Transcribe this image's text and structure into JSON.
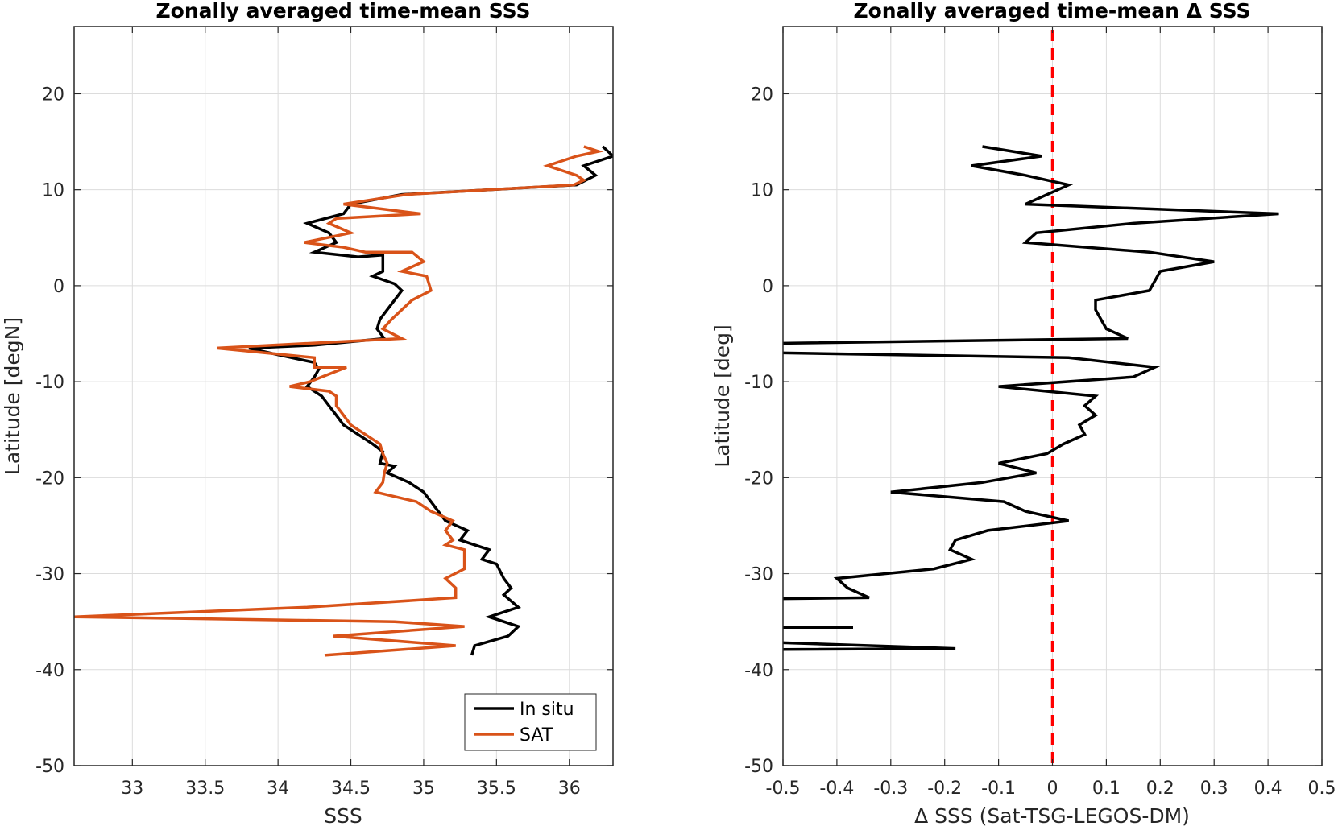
{
  "chart_data": [
    {
      "type": "line",
      "title": "Zonally averaged time-mean SSS",
      "xlabel": "SSS",
      "ylabel": "Latitude [degN]",
      "xlim": [
        32.6,
        36.3
      ],
      "ylim": [
        -50,
        27
      ],
      "xticks": [
        33,
        33.5,
        34,
        34.5,
        35,
        35.5,
        36
      ],
      "xtick_labels": [
        "33",
        "33.5",
        "34",
        "34.5",
        "35",
        "35.5",
        "36"
      ],
      "yticks": [
        -50,
        -40,
        -30,
        -20,
        -10,
        0,
        10,
        20
      ],
      "ytick_labels": [
        "-50",
        "-40",
        "-30",
        "-20",
        "-10",
        "0",
        "10",
        "20"
      ],
      "grid": true,
      "legend_position": "bottom-right",
      "series": [
        {
          "name": "In situ",
          "color": "#000000",
          "points": [
            [
              36.23,
              14.5
            ],
            [
              36.3,
              13.5
            ],
            [
              36.1,
              12.5
            ],
            [
              36.18,
              11.5
            ],
            [
              36.05,
              10.5
            ],
            [
              34.85,
              9.5
            ],
            [
              34.5,
              8.5
            ],
            [
              34.45,
              7.5
            ],
            [
              34.2,
              6.5
            ],
            [
              34.35,
              5.5
            ],
            [
              34.4,
              4.5
            ],
            [
              34.25,
              3.5
            ],
            [
              34.55,
              3.0
            ],
            [
              34.72,
              3.2
            ],
            [
              34.72,
              1.5
            ],
            [
              34.65,
              1.0
            ],
            [
              34.8,
              0.2
            ],
            [
              34.85,
              -0.5
            ],
            [
              34.8,
              -1.5
            ],
            [
              34.75,
              -2.5
            ],
            [
              34.7,
              -3.5
            ],
            [
              34.68,
              -4.5
            ],
            [
              34.73,
              -5.5
            ],
            [
              34.25,
              -6.2
            ],
            [
              33.8,
              -6.5
            ],
            [
              34.0,
              -7.2
            ],
            [
              34.25,
              -8.0
            ],
            [
              34.28,
              -8.7
            ],
            [
              34.25,
              -9.5
            ],
            [
              34.2,
              -10.5
            ],
            [
              34.3,
              -11.5
            ],
            [
              34.35,
              -12.5
            ],
            [
              34.4,
              -13.5
            ],
            [
              34.45,
              -14.5
            ],
            [
              34.55,
              -15.5
            ],
            [
              34.65,
              -16.5
            ],
            [
              34.72,
              -17.3
            ],
            [
              34.7,
              -18.5
            ],
            [
              34.8,
              -18.8
            ],
            [
              34.75,
              -19.5
            ],
            [
              34.9,
              -20.5
            ],
            [
              35.0,
              -21.5
            ],
            [
              35.05,
              -22.5
            ],
            [
              35.1,
              -23.5
            ],
            [
              35.15,
              -24.5
            ],
            [
              35.3,
              -25.5
            ],
            [
              35.25,
              -26.5
            ],
            [
              35.35,
              -27.0
            ],
            [
              35.45,
              -27.5
            ],
            [
              35.4,
              -28.5
            ],
            [
              35.5,
              -29.0
            ],
            [
              35.55,
              -30.5
            ],
            [
              35.6,
              -31.5
            ],
            [
              35.55,
              -32.2
            ],
            [
              35.65,
              -33.5
            ],
            [
              35.45,
              -34.5
            ],
            [
              35.65,
              -35.5
            ],
            [
              35.58,
              -36.5
            ],
            [
              35.35,
              -37.5
            ],
            [
              35.33,
              -38.5
            ]
          ]
        },
        {
          "name": "SAT",
          "color": "#d95319",
          "points": [
            [
              36.1,
              14.5
            ],
            [
              36.2,
              14.0
            ],
            [
              36.05,
              13.5
            ],
            [
              35.85,
              12.5
            ],
            [
              36.05,
              11.5
            ],
            [
              36.1,
              11.0
            ],
            [
              36.03,
              10.5
            ],
            [
              34.88,
              9.5
            ],
            [
              34.45,
              8.5
            ],
            [
              34.98,
              7.5
            ],
            [
              34.4,
              7.0
            ],
            [
              34.35,
              6.5
            ],
            [
              34.5,
              5.5
            ],
            [
              34.18,
              4.5
            ],
            [
              34.45,
              4.0
            ],
            [
              34.6,
              3.5
            ],
            [
              34.92,
              3.5
            ],
            [
              35.0,
              2.5
            ],
            [
              34.85,
              1.5
            ],
            [
              35.02,
              1.0
            ],
            [
              35.05,
              -0.5
            ],
            [
              34.92,
              -1.5
            ],
            [
              34.85,
              -2.5
            ],
            [
              34.78,
              -3.5
            ],
            [
              34.72,
              -4.5
            ],
            [
              34.85,
              -5.5
            ],
            [
              33.58,
              -6.5
            ],
            [
              34.25,
              -7.5
            ],
            [
              34.25,
              -8.5
            ],
            [
              34.47,
              -8.5
            ],
            [
              34.3,
              -9.5
            ],
            [
              34.22,
              -10.0
            ],
            [
              34.08,
              -10.5
            ],
            [
              34.35,
              -11.0
            ],
            [
              34.4,
              -11.5
            ],
            [
              34.4,
              -12.5
            ],
            [
              34.45,
              -13.5
            ],
            [
              34.5,
              -14.5
            ],
            [
              34.6,
              -15.5
            ],
            [
              34.7,
              -16.5
            ],
            [
              34.72,
              -17.5
            ],
            [
              34.75,
              -18.5
            ],
            [
              34.73,
              -19.5
            ],
            [
              34.72,
              -20.5
            ],
            [
              34.67,
              -21.5
            ],
            [
              34.95,
              -22.5
            ],
            [
              35.05,
              -23.5
            ],
            [
              35.2,
              -24.5
            ],
            [
              35.15,
              -25.5
            ],
            [
              35.2,
              -26.5
            ],
            [
              35.15,
              -27.0
            ],
            [
              35.28,
              -27.5
            ],
            [
              35.28,
              -29.5
            ],
            [
              35.15,
              -30.5
            ],
            [
              35.22,
              -31.5
            ],
            [
              35.22,
              -32.5
            ],
            [
              34.2,
              -33.5
            ],
            [
              32.6,
              -34.5
            ],
            [
              34.8,
              -35.0
            ],
            [
              35.28,
              -35.5
            ],
            [
              34.38,
              -36.5
            ],
            [
              35.22,
              -37.5
            ],
            [
              34.32,
              -38.5
            ]
          ]
        }
      ]
    },
    {
      "type": "line",
      "title": "Zonally averaged time-mean Δ SSS",
      "xlabel": "Δ SSS (Sat-TSG-LEGOS-DM)",
      "ylabel": "Latitude [deg]",
      "xlim": [
        -0.5,
        0.5
      ],
      "ylim": [
        -50,
        27
      ],
      "xticks": [
        -0.5,
        -0.4,
        -0.3,
        -0.2,
        -0.1,
        0,
        0.1,
        0.2,
        0.3,
        0.4,
        0.5
      ],
      "xtick_labels": [
        "-0.5",
        "-0.4",
        "-0.3",
        "-0.2",
        "-0.1",
        "0",
        "0.1",
        "0.2",
        "0.3",
        "0.4",
        "0.5"
      ],
      "yticks": [
        -50,
        -40,
        -30,
        -20,
        -10,
        0,
        10,
        20
      ],
      "ytick_labels": [
        "-50",
        "-40",
        "-30",
        "-20",
        "-10",
        "0",
        "10",
        "20"
      ],
      "grid": true,
      "reference_line": {
        "x": 0,
        "color": "#ff0000",
        "style": "dashed"
      },
      "series": [
        {
          "color": "#000000",
          "segments": [
            [
              [
                -0.13,
                14.5
              ],
              [
                -0.02,
                13.5
              ],
              [
                -0.15,
                12.5
              ],
              [
                -0.05,
                11.5
              ],
              [
                0.03,
                10.5
              ],
              [
                -0.05,
                8.5
              ],
              [
                0.42,
                7.5
              ],
              [
                0.15,
                6.5
              ],
              [
                -0.03,
                5.5
              ],
              [
                -0.05,
                4.5
              ],
              [
                0.18,
                3.5
              ],
              [
                0.3,
                2.5
              ],
              [
                0.2,
                1.5
              ],
              [
                0.18,
                -0.5
              ],
              [
                0.08,
                -1.5
              ],
              [
                0.08,
                -2.5
              ],
              [
                0.09,
                -3.5
              ],
              [
                0.1,
                -4.5
              ],
              [
                0.14,
                -5.5
              ],
              [
                -0.5,
                -6.0
              ]
            ],
            [
              [
                -0.5,
                -7.0
              ],
              [
                0.03,
                -7.5
              ],
              [
                0.19,
                -8.5
              ],
              [
                0.15,
                -9.5
              ],
              [
                -0.1,
                -10.5
              ],
              [
                0.08,
                -11.5
              ],
              [
                0.06,
                -12.5
              ],
              [
                0.08,
                -13.5
              ],
              [
                0.05,
                -14.5
              ],
              [
                0.06,
                -15.5
              ],
              [
                0.02,
                -16.5
              ],
              [
                -0.01,
                -17.5
              ],
              [
                -0.1,
                -18.5
              ],
              [
                -0.03,
                -19.5
              ],
              [
                -0.13,
                -20.5
              ],
              [
                -0.3,
                -21.5
              ],
              [
                -0.09,
                -22.5
              ],
              [
                -0.05,
                -23.5
              ],
              [
                0.03,
                -24.5
              ],
              [
                -0.12,
                -25.5
              ],
              [
                -0.18,
                -26.5
              ],
              [
                -0.19,
                -27.5
              ],
              [
                -0.15,
                -28.5
              ],
              [
                -0.22,
                -29.5
              ],
              [
                -0.4,
                -30.5
              ],
              [
                -0.38,
                -31.5
              ],
              [
                -0.34,
                -32.5
              ],
              [
                -0.5,
                -32.6
              ]
            ],
            [
              [
                -0.5,
                -35.6
              ],
              [
                -0.37,
                -35.6
              ]
            ],
            [
              [
                -0.5,
                -37.2
              ],
              [
                -0.18,
                -37.8
              ],
              [
                -0.5,
                -37.9
              ]
            ]
          ]
        }
      ]
    }
  ],
  "legend": {
    "items": [
      {
        "label": "In situ",
        "color": "#000000"
      },
      {
        "label": "SAT",
        "color": "#d95319"
      }
    ]
  }
}
